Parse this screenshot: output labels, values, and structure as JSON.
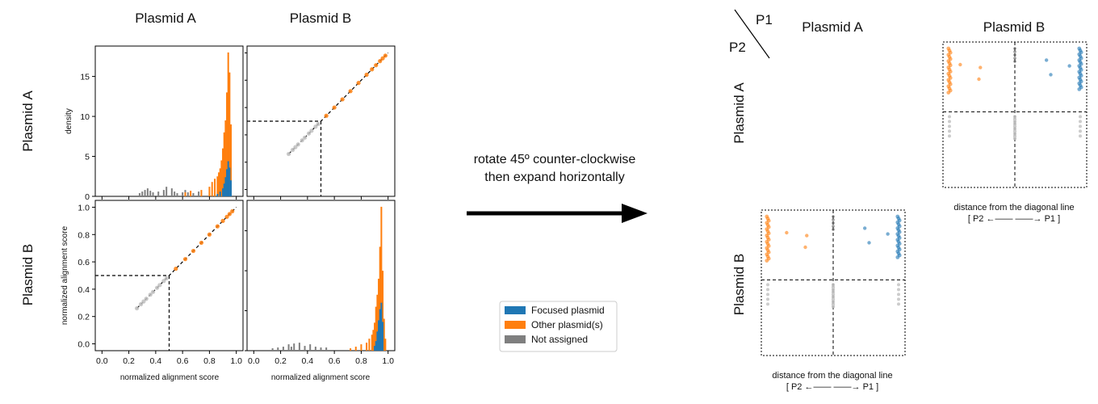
{
  "figure": {
    "col_headers": [
      "Plasmid A",
      "Plasmid B"
    ],
    "row_headers": [
      "Plasmid A",
      "Plasmid B"
    ],
    "arrow_text": [
      "rotate 45º counter-clockwise",
      "then expand horizontally"
    ],
    "corner_labels": {
      "p1": "P1",
      "p2": "P2"
    },
    "right_col_headers": [
      "Plasmid A",
      "Plasmid B"
    ],
    "right_row_headers": [
      "Plasmid A",
      "Plasmid B"
    ],
    "right_xlabel_line1": "distance from the diagonal line",
    "right_xlabel_line2": "[ P2  ←——  ——→  P1 ]"
  },
  "legend": {
    "items": [
      {
        "label": "Focused plasmid",
        "color": "#1f77b4"
      },
      {
        "label": "Other plasmid(s)",
        "color": "#ff7f0e"
      },
      {
        "label": "Not assigned",
        "color": "#7f7f7f"
      }
    ]
  },
  "colors": {
    "focused": "#1f77b4",
    "other": "#ff7f0e",
    "unassigned": "#7f7f7f",
    "light_unassigned": "#bfbfbf"
  },
  "chart_data": [
    {
      "type": "bar",
      "panel": "A-A histogram",
      "xlabel": "",
      "ylabel": "density",
      "xlim": [
        -0.05,
        1.05
      ],
      "ylim": [
        0,
        18.8
      ],
      "yticks": [
        0,
        5,
        10,
        15
      ],
      "series": [
        {
          "name": "Not assigned",
          "x": [
            0.28,
            0.3,
            0.32,
            0.34,
            0.36,
            0.38,
            0.42,
            0.46,
            0.48,
            0.52,
            0.54,
            0.56,
            0.6,
            0.62,
            0.64,
            0.68,
            0.72
          ],
          "values": [
            0.4,
            0.6,
            0.8,
            1.0,
            0.7,
            0.5,
            0.6,
            0.8,
            1.2,
            1.0,
            0.6,
            0.4,
            0.5,
            0.8,
            0.5,
            0.4,
            0.6
          ]
        },
        {
          "name": "Other plasmid(s)",
          "x": [
            0.62,
            0.66,
            0.74,
            0.8,
            0.82,
            0.84,
            0.86,
            0.87,
            0.88,
            0.89,
            0.9,
            0.91,
            0.92,
            0.93,
            0.94,
            0.95,
            0.96
          ],
          "values": [
            0.5,
            0.7,
            0.8,
            1.2,
            1.8,
            2.2,
            2.5,
            3.0,
            3.5,
            4.5,
            6.0,
            8.0,
            9.5,
            13.0,
            18.0,
            15.5,
            9.0
          ]
        },
        {
          "name": "Focused plasmid",
          "x": [
            0.86,
            0.88,
            0.9,
            0.91,
            0.92,
            0.93,
            0.94,
            0.95,
            0.96
          ],
          "values": [
            0.3,
            0.6,
            1.0,
            1.6,
            2.4,
            3.4,
            4.4,
            3.6,
            2.0
          ]
        }
      ]
    },
    {
      "type": "scatter",
      "panel": "A-B alignment scores",
      "xlim": [
        -0.05,
        1.05
      ],
      "ylim": [
        -0.05,
        1.05
      ],
      "threshold": 0.5,
      "diagonal": [
        [
          0.5,
          1.0
        ],
        [
          0.5,
          1.0
        ]
      ],
      "series": [
        {
          "name": "Not assigned",
          "x": [
            0.26,
            0.29,
            0.31,
            0.33,
            0.36,
            0.38,
            0.41,
            0.43,
            0.46,
            0.48
          ],
          "y": [
            0.26,
            0.29,
            0.31,
            0.33,
            0.36,
            0.38,
            0.41,
            0.43,
            0.46,
            0.48
          ]
        },
        {
          "name": "Other plasmid(s)",
          "x": [
            0.54,
            0.6,
            0.66,
            0.72,
            0.78,
            0.84,
            0.88,
            0.91,
            0.94,
            0.96,
            0.98
          ],
          "y": [
            0.54,
            0.6,
            0.66,
            0.72,
            0.78,
            0.84,
            0.88,
            0.91,
            0.94,
            0.96,
            0.98
          ]
        }
      ]
    },
    {
      "type": "scatter",
      "panel": "B-A alignment scores",
      "xlabel": "normalized alignment score",
      "ylabel": "normalized alignment score",
      "xlim": [
        -0.05,
        1.05
      ],
      "ylim": [
        -0.05,
        1.05
      ],
      "xticks": [
        "0.0",
        "0.2",
        "0.4",
        "0.6",
        "0.8",
        "1.0"
      ],
      "yticks": [
        "0.0",
        "0.2",
        "0.4",
        "0.6",
        "0.8",
        "1.0"
      ],
      "threshold": 0.5,
      "series": [
        {
          "name": "Not assigned",
          "x": [
            0.26,
            0.29,
            0.31,
            0.33,
            0.36,
            0.38,
            0.41,
            0.43,
            0.46,
            0.48
          ],
          "y": [
            0.26,
            0.29,
            0.31,
            0.33,
            0.36,
            0.38,
            0.41,
            0.43,
            0.46,
            0.48
          ]
        },
        {
          "name": "Other plasmid(s)",
          "x": [
            0.55,
            0.62,
            0.68,
            0.74,
            0.8,
            0.86,
            0.9,
            0.93,
            0.95,
            0.97
          ],
          "y": [
            0.55,
            0.62,
            0.68,
            0.74,
            0.8,
            0.86,
            0.9,
            0.93,
            0.95,
            0.97
          ]
        }
      ]
    },
    {
      "type": "bar",
      "panel": "B-B histogram",
      "xlabel": "normalized alignment score",
      "xticks": [
        "0.0",
        "0.2",
        "0.4",
        "0.6",
        "0.8",
        "1.0"
      ],
      "xlim": [
        -0.05,
        1.05
      ],
      "ylim": [
        0,
        18.8
      ],
      "series": [
        {
          "name": "Not assigned",
          "x": [
            0.14,
            0.18,
            0.22,
            0.26,
            0.28,
            0.3,
            0.34,
            0.38,
            0.42,
            0.46,
            0.5,
            0.54
          ],
          "values": [
            0.3,
            0.4,
            0.5,
            0.8,
            0.5,
            0.9,
            1.0,
            0.6,
            0.8,
            0.5,
            0.4,
            0.4
          ]
        },
        {
          "name": "Other plasmid(s)",
          "x": [
            0.72,
            0.76,
            0.8,
            0.84,
            0.86,
            0.88,
            0.89,
            0.9,
            0.91,
            0.92,
            0.93,
            0.94,
            0.95,
            0.96,
            0.97,
            0.98
          ],
          "values": [
            0.3,
            0.5,
            0.8,
            1.0,
            1.5,
            2.0,
            2.6,
            3.5,
            5.5,
            7.0,
            9.0,
            13.0,
            18.0,
            10.0,
            4.0,
            1.5
          ]
        },
        {
          "name": "Focused plasmid",
          "x": [
            0.9,
            0.91,
            0.92,
            0.93,
            0.94,
            0.95,
            0.96
          ],
          "values": [
            0.6,
            1.2,
            2.4,
            3.8,
            5.2,
            6.0,
            3.6
          ]
        }
      ]
    }
  ]
}
